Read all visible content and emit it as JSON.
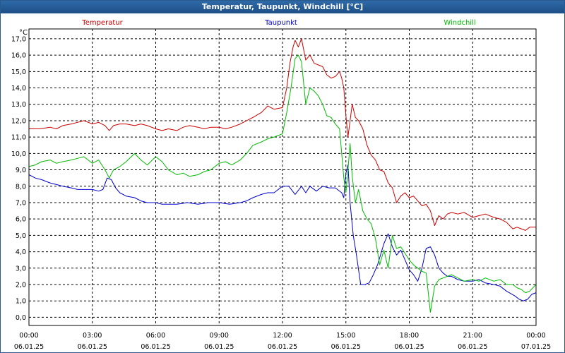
{
  "window": {
    "title": "Temperatur, Taupunkt, Windchill [°C]"
  },
  "chart_data": {
    "type": "line",
    "title": "Temperatur, Taupunkt, Windchill [°C]",
    "ylabel": "°C",
    "xlabel": "",
    "ylim": [
      -0.5,
      17.6
    ],
    "xlim": [
      0,
      24
    ],
    "grid": true,
    "legend_placement": "top",
    "y_ticks": [
      "0,0",
      "1,0",
      "2,0",
      "3,0",
      "4,0",
      "5,0",
      "6,0",
      "7,0",
      "8,0",
      "9,0",
      "10,0",
      "11,0",
      "12,0",
      "13,0",
      "14,0",
      "15,0",
      "16,0",
      "17,0"
    ],
    "x_ticks": [
      {
        "time": "00:00",
        "date": "06.01.25",
        "h": 0
      },
      {
        "time": "03:00",
        "date": "06.01.25",
        "h": 3
      },
      {
        "time": "06:00",
        "date": "06.01.25",
        "h": 6
      },
      {
        "time": "09:00",
        "date": "06.01.25",
        "h": 9
      },
      {
        "time": "12:00",
        "date": "06.01.25",
        "h": 12
      },
      {
        "time": "15:00",
        "date": "06.01.25",
        "h": 15
      },
      {
        "time": "18:00",
        "date": "06.01.25",
        "h": 18
      },
      {
        "time": "21:00",
        "date": "06.01.25",
        "h": 21
      },
      {
        "time": "00:00",
        "date": "07.01.25",
        "h": 24
      }
    ],
    "series": [
      {
        "name": "Temperatur",
        "color": "#cc0000",
        "x": [
          0,
          0.5,
          1,
          1.3,
          1.6,
          2,
          2.3,
          2.6,
          3,
          3.3,
          3.6,
          3.8,
          4,
          4.3,
          4.6,
          5,
          5.3,
          5.6,
          6,
          6.3,
          6.6,
          7,
          7.3,
          7.6,
          8,
          8.3,
          8.6,
          9,
          9.3,
          9.6,
          10,
          10.3,
          10.6,
          11,
          11.3,
          11.6,
          12,
          12.2,
          12.35,
          12.5,
          12.6,
          12.75,
          12.9,
          13.1,
          13.3,
          13.5,
          13.7,
          13.9,
          14.1,
          14.3,
          14.5,
          14.7,
          14.8,
          14.9,
          15,
          15.1,
          15.2,
          15.3,
          15.45,
          15.6,
          15.8,
          16,
          16.2,
          16.4,
          16.6,
          16.8,
          17,
          17.2,
          17.4,
          17.6,
          17.8,
          18,
          18.2,
          18.4,
          18.6,
          18.8,
          19,
          19.2,
          19.4,
          19.6,
          19.8,
          20,
          20.3,
          20.6,
          21,
          21.3,
          21.6,
          22,
          22.3,
          22.6,
          22.9,
          23.1,
          23.3,
          23.5,
          23.7,
          24
        ],
        "y": [
          11.5,
          11.5,
          11.6,
          11.5,
          11.7,
          11.8,
          11.9,
          12,
          11.8,
          11.9,
          11.7,
          11.4,
          11.7,
          11.8,
          11.8,
          11.7,
          11.8,
          11.7,
          11.5,
          11.4,
          11.5,
          11.4,
          11.6,
          11.7,
          11.6,
          11.5,
          11.6,
          11.6,
          11.5,
          11.6,
          11.8,
          12,
          12.2,
          12.5,
          12.9,
          12.7,
          12.8,
          14,
          15.5,
          16.5,
          16.9,
          16.5,
          17,
          15.7,
          16,
          15.5,
          15.4,
          15.3,
          14.8,
          14.6,
          14.7,
          15,
          14.6,
          14,
          12.3,
          11,
          12,
          13,
          12.2,
          12,
          11.5,
          10.5,
          9.9,
          9.6,
          9.0,
          8.9,
          8.2,
          7.9,
          7,
          7.4,
          7.6,
          7.3,
          7.4,
          7.1,
          6.8,
          6.9,
          6.5,
          5.6,
          6.2,
          6.0,
          6.3,
          6.4,
          6.3,
          6.4,
          6.1,
          6.2,
          6.3,
          6.1,
          6.0,
          5.8,
          5.4,
          5.5,
          5.4,
          5.3,
          5.5,
          5.5
        ]
      },
      {
        "name": "Taupunkt",
        "color": "#0000cc",
        "x": [
          0,
          0.3,
          0.6,
          1,
          1.3,
          1.6,
          2,
          2.3,
          2.6,
          3,
          3.3,
          3.5,
          3.7,
          3.9,
          4.1,
          4.3,
          4.6,
          5,
          5.3,
          5.6,
          6,
          6.3,
          6.6,
          7,
          7.5,
          8,
          8.5,
          9,
          9.5,
          10,
          10.3,
          10.6,
          11,
          11.3,
          11.6,
          12,
          12.3,
          12.6,
          12.9,
          13.1,
          13.3,
          13.6,
          13.9,
          14.2,
          14.5,
          14.8,
          14.9,
          15,
          15.1,
          15.2,
          15.35,
          15.5,
          15.7,
          15.9,
          16.1,
          16.3,
          16.5,
          16.8,
          17,
          17.2,
          17.4,
          17.6,
          17.8,
          18,
          18.2,
          18.4,
          18.6,
          18.8,
          19,
          19.2,
          19.4,
          19.6,
          19.8,
          20,
          20.3,
          20.6,
          21,
          21.3,
          21.6,
          22,
          22.3,
          22.6,
          23,
          23.2,
          23.4,
          23.6,
          23.8,
          24
        ],
        "y": [
          8.7,
          8.5,
          8.4,
          8.2,
          8.1,
          8.0,
          7.9,
          7.8,
          7.8,
          7.8,
          7.7,
          7.8,
          8.5,
          8.4,
          7.9,
          7.6,
          7.4,
          7.3,
          7.1,
          7.0,
          7.0,
          6.9,
          6.9,
          6.9,
          7.0,
          6.9,
          7.0,
          7.0,
          6.9,
          7.0,
          7.1,
          7.3,
          7.5,
          7.6,
          7.6,
          8,
          8,
          7.5,
          8,
          7.6,
          8.0,
          7.7,
          8,
          7.9,
          7.9,
          7.6,
          7.3,
          8.8,
          9.3,
          7.0,
          5,
          3.8,
          2.0,
          2.0,
          2.1,
          2.6,
          3.2,
          4.5,
          5.1,
          4.3,
          3.8,
          4.1,
          3.5,
          2.9,
          2.6,
          2.2,
          3.0,
          4.2,
          4.3,
          3.8,
          3.0,
          2.7,
          2.5,
          2.5,
          2.3,
          2.2,
          2.2,
          2.3,
          2.1,
          2.0,
          1.9,
          1.6,
          1.3,
          1.1,
          1.0,
          1.1,
          1.4,
          1.5
        ]
      },
      {
        "name": "Windchill",
        "color": "#00bb00",
        "x": [
          0,
          0.3,
          0.6,
          1,
          1.3,
          1.6,
          2,
          2.3,
          2.6,
          3,
          3.3,
          3.6,
          3.8,
          4,
          4.3,
          4.6,
          5,
          5.3,
          5.6,
          6,
          6.3,
          6.6,
          7,
          7.3,
          7.6,
          8,
          8.3,
          8.6,
          9,
          9.3,
          9.6,
          10,
          10.3,
          10.6,
          11,
          11.3,
          11.6,
          12,
          12.2,
          12.4,
          12.6,
          12.75,
          12.9,
          13.1,
          13.3,
          13.5,
          13.7,
          13.9,
          14.1,
          14.3,
          14.5,
          14.7,
          14.8,
          14.9,
          15,
          15.1,
          15.2,
          15.3,
          15.45,
          15.6,
          15.8,
          16,
          16.2,
          16.4,
          16.6,
          16.8,
          17,
          17.2,
          17.4,
          17.6,
          17.8,
          18,
          18.2,
          18.4,
          18.6,
          18.8,
          19,
          19.2,
          19.4,
          19.6,
          19.8,
          20,
          20.3,
          20.6,
          21,
          21.3,
          21.6,
          22,
          22.3,
          22.6,
          22.9,
          23.1,
          23.3,
          23.5,
          23.7,
          24
        ],
        "y": [
          9.2,
          9.3,
          9.5,
          9.6,
          9.4,
          9.5,
          9.6,
          9.7,
          9.8,
          9.4,
          9.6,
          9,
          8.5,
          9.0,
          9.2,
          9.5,
          10,
          9.6,
          9.3,
          9.8,
          9.5,
          9.0,
          8.7,
          8.8,
          8.6,
          8.7,
          8.9,
          9.0,
          9.4,
          9.5,
          9.3,
          9.6,
          10.0,
          10.5,
          10.7,
          10.9,
          11.0,
          11.2,
          12.5,
          14.0,
          15.8,
          16,
          15.6,
          13.0,
          14.0,
          13.8,
          13.5,
          13.0,
          12.3,
          12.2,
          11.8,
          11.5,
          10,
          8.5,
          7.6,
          9,
          10.6,
          8.6,
          7.0,
          7.8,
          6.5,
          6.0,
          5.7,
          4.8,
          3.2,
          4.1,
          3.0,
          5.0,
          4.2,
          4.3,
          3.9,
          3.5,
          3.2,
          3.0,
          2.8,
          2.7,
          0.3,
          1.9,
          2.3,
          2.4,
          2.5,
          2.6,
          2.4,
          2.2,
          2.3,
          2.2,
          2.4,
          2.2,
          2.3,
          2.0,
          2.0,
          1.8,
          1.7,
          1.5,
          1.6,
          2.0
        ]
      }
    ]
  }
}
